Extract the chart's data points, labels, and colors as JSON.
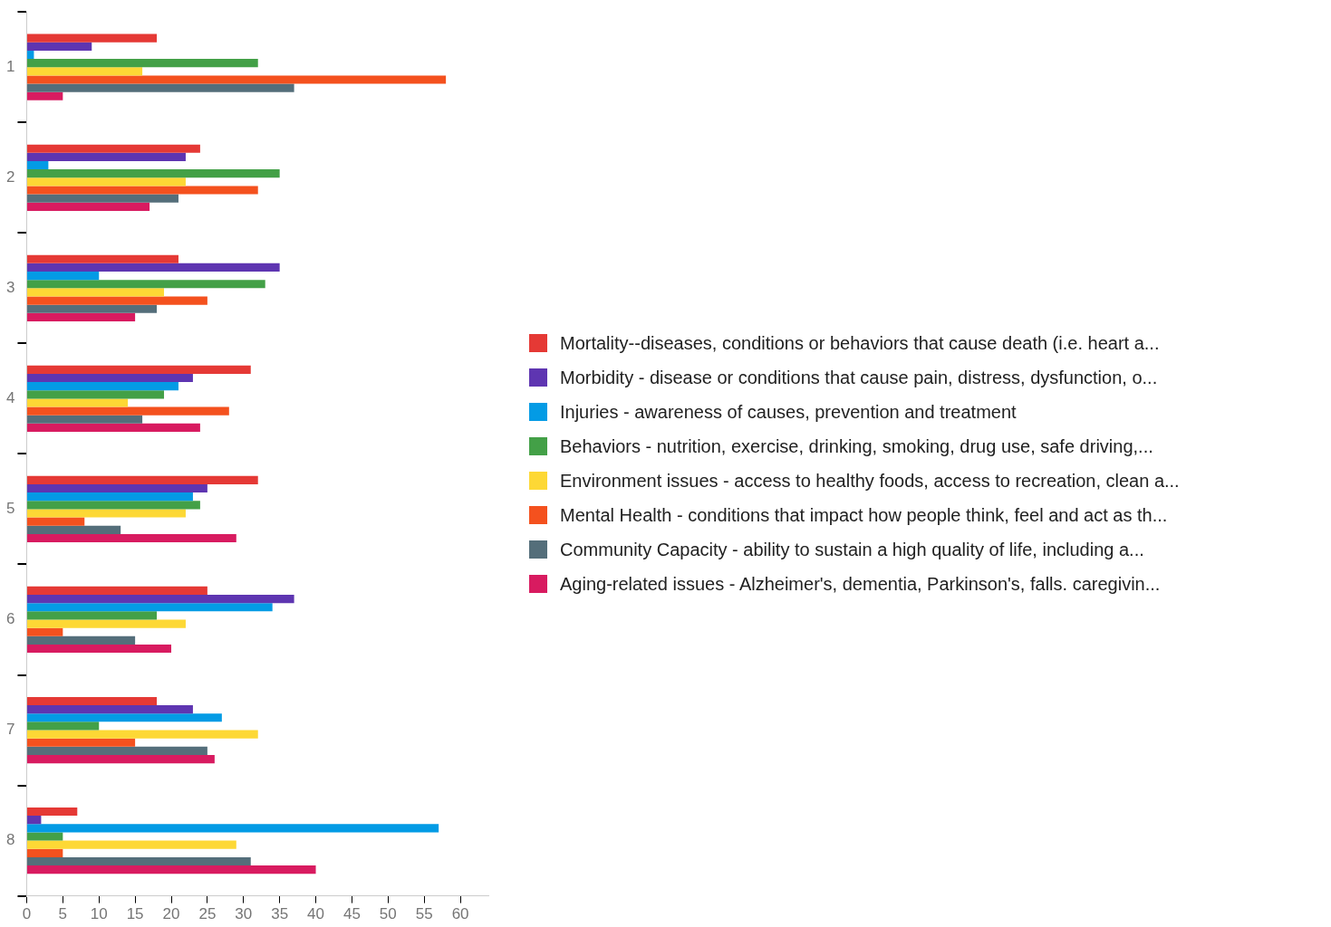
{
  "chart_data": {
    "type": "bar",
    "orientation": "horizontal",
    "categories": [
      "1",
      "2",
      "3",
      "4",
      "5",
      "6",
      "7",
      "8"
    ],
    "xlim": [
      0,
      64
    ],
    "xticks": [
      0,
      5,
      10,
      15,
      20,
      25,
      30,
      35,
      40,
      45,
      50,
      55,
      60
    ],
    "grid": false,
    "legend": "right",
    "series": [
      {
        "name": "Mortality--diseases, conditions or behaviors that cause death (i.e. heart a...",
        "color": "#e53935",
        "values": [
          18,
          24,
          21,
          31,
          32,
          25,
          18,
          7
        ]
      },
      {
        "name": "Morbidity - disease or conditions that cause pain, distress, dysfunction, o...",
        "color": "#5e35b1",
        "values": [
          9,
          22,
          35,
          23,
          25,
          37,
          23,
          2
        ]
      },
      {
        "name": "Injuries - awareness of causes, prevention and treatment",
        "color": "#039be5",
        "values": [
          1,
          3,
          10,
          21,
          23,
          34,
          27,
          57
        ]
      },
      {
        "name": "Behaviors - nutrition, exercise, drinking, smoking, drug use, safe driving,...",
        "color": "#43a047",
        "values": [
          32,
          35,
          33,
          19,
          24,
          18,
          10,
          5
        ]
      },
      {
        "name": "Environment issues - access to healthy foods, access to recreation, clean a...",
        "color": "#fdd835",
        "values": [
          16,
          22,
          19,
          14,
          22,
          22,
          32,
          29
        ]
      },
      {
        "name": "Mental Health - conditions that impact how people think, feel and act as th...",
        "color": "#f4511e",
        "values": [
          58,
          32,
          25,
          28,
          8,
          5,
          15,
          5
        ]
      },
      {
        "name": "Community Capacity - ability to sustain a high quality of life, including a...",
        "color": "#546e7a",
        "values": [
          37,
          21,
          18,
          16,
          13,
          15,
          25,
          31
        ]
      },
      {
        "name": "Aging-related issues - Alzheimer's, dementia, Parkinson's, falls. caregivin...",
        "color": "#d81b60",
        "values": [
          5,
          17,
          15,
          24,
          29,
          20,
          26,
          40
        ]
      }
    ]
  }
}
